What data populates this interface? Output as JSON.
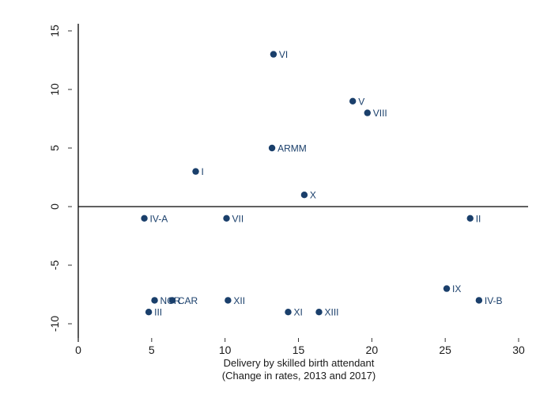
{
  "chart_data": {
    "type": "scatter",
    "title": "",
    "xlabel": "Delivery by skilled birth attendant",
    "xlabel_sub": "(Change in rates, 2013 and 2017)",
    "ylabel": "",
    "xlim": [
      0,
      31
    ],
    "ylim": [
      -11,
      16
    ],
    "xticks": [
      0,
      5,
      10,
      15,
      20,
      25,
      30
    ],
    "yticks": [
      -10,
      -5,
      0,
      5,
      10,
      15
    ],
    "grid": false,
    "reference_lines": {
      "x": 0,
      "y": 0
    },
    "marker_color": "#1a3f6b",
    "label_color": "#1a3f6b",
    "points": [
      {
        "label": "VI",
        "x": 13.3,
        "y": 13
      },
      {
        "label": "V",
        "x": 18.7,
        "y": 9
      },
      {
        "label": "VIII",
        "x": 19.7,
        "y": 8
      },
      {
        "label": "ARMM",
        "x": 13.2,
        "y": 5
      },
      {
        "label": "I",
        "x": 8.0,
        "y": 3
      },
      {
        "label": "X",
        "x": 15.4,
        "y": 1
      },
      {
        "label": "IV-A",
        "x": 4.5,
        "y": -1
      },
      {
        "label": "VII",
        "x": 10.1,
        "y": -1
      },
      {
        "label": "II",
        "x": 26.7,
        "y": -1
      },
      {
        "label": "IX",
        "x": 25.1,
        "y": -7
      },
      {
        "label": "IV-B",
        "x": 27.3,
        "y": -8
      },
      {
        "label": "NCR",
        "x": 5.2,
        "y": -8
      },
      {
        "label": "CAR",
        "x": 6.4,
        "y": -8
      },
      {
        "label": "XII",
        "x": 10.2,
        "y": -8
      },
      {
        "label": "III",
        "x": 4.8,
        "y": -9
      },
      {
        "label": "XI",
        "x": 14.3,
        "y": -9
      },
      {
        "label": "XIII",
        "x": 16.4,
        "y": -9
      }
    ]
  }
}
